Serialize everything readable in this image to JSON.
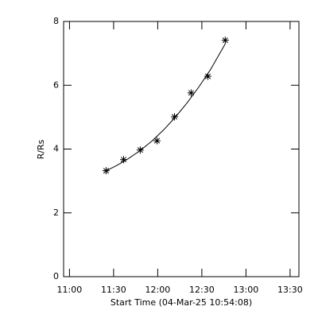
{
  "chart_data": {
    "type": "scatter",
    "xlabel": "Start Time (04-Mar-25 10:54:08)",
    "ylabel": "R/Rs",
    "xlim": [
      656,
      816
    ],
    "ylim": [
      0,
      8
    ],
    "xticks": [
      {
        "value": 660,
        "label": "11:00"
      },
      {
        "value": 690,
        "label": "11:30"
      },
      {
        "value": 720,
        "label": "12:00"
      },
      {
        "value": 750,
        "label": "12:30"
      },
      {
        "value": 780,
        "label": "13:00"
      },
      {
        "value": 810,
        "label": "13:30"
      }
    ],
    "yticks": [
      0,
      2,
      4,
      6,
      8
    ],
    "color": "#000000",
    "x": [
      684.9,
      696.8,
      708.1,
      719.5,
      731.4,
      742.7,
      754.1,
      765.9
    ],
    "values": [
      3.32,
      3.67,
      3.97,
      4.26,
      5.01,
      5.76,
      6.28,
      7.41
    ],
    "fit": {
      "x": [
        684.9,
        692,
        700,
        708,
        716,
        724,
        732,
        740,
        748,
        756,
        765.9
      ],
      "values": [
        3.32,
        3.48,
        3.7,
        3.95,
        4.25,
        4.6,
        5.0,
        5.45,
        5.95,
        6.5,
        7.3
      ]
    }
  }
}
